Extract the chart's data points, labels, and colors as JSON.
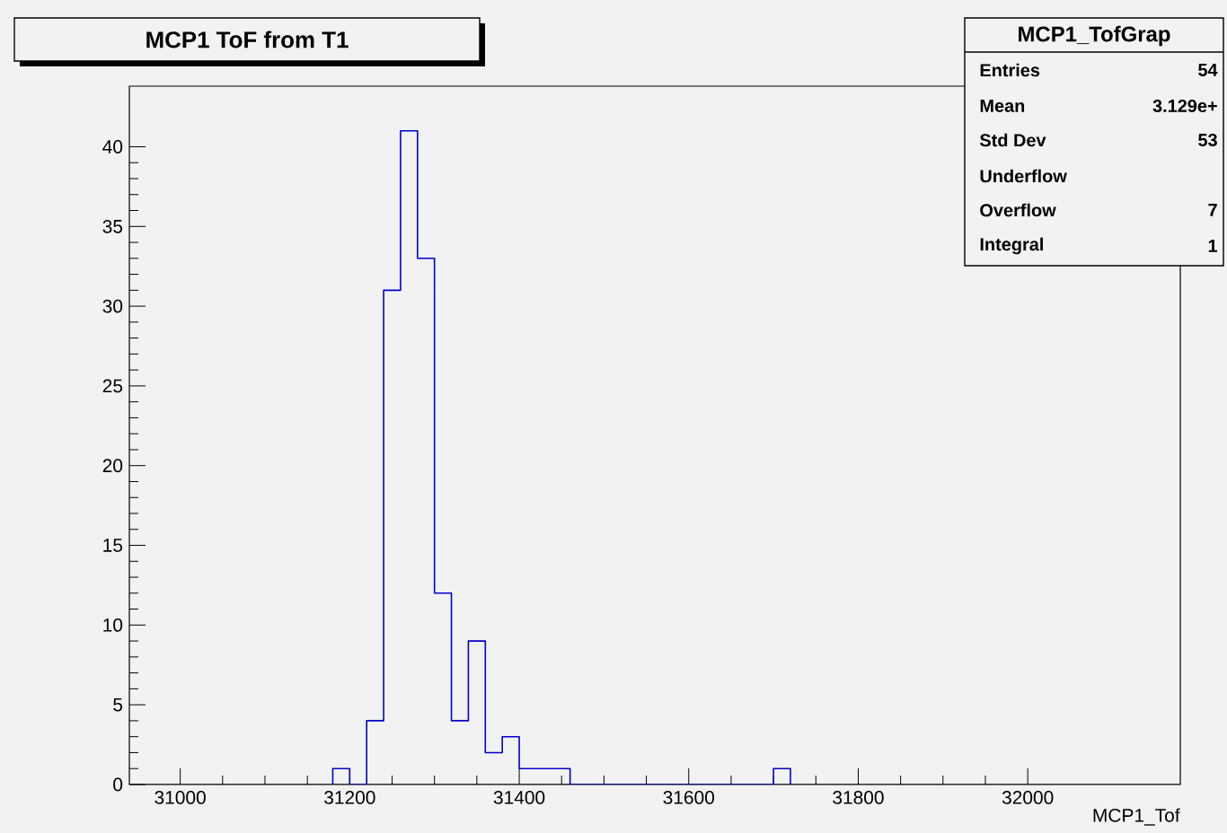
{
  "chart_data": {
    "type": "histogram",
    "title": "MCP1 ToF from T1",
    "xlabel": "MCP1_Tof",
    "color": "#0000cc",
    "bins": [
      31180,
      31200,
      31220,
      31240,
      31260,
      31280,
      31300,
      31320,
      31340,
      31360,
      31380,
      31400,
      31420,
      31440,
      31460,
      31480,
      31500,
      31520,
      31540,
      31560,
      31580,
      31600,
      31620,
      31640,
      31660,
      31680,
      31700,
      31720
    ],
    "values": [
      1,
      0,
      4,
      31,
      41,
      33,
      12,
      4,
      9,
      2,
      3,
      1,
      1,
      1,
      0,
      0,
      0,
      0,
      0,
      0,
      0,
      0,
      0,
      0,
      0,
      0,
      1
    ],
    "xlim": [
      30940,
      32180
    ],
    "xticks": [
      31000,
      31200,
      31400,
      31600,
      31800,
      32000
    ],
    "ylim": [
      0,
      43.8
    ],
    "yticks": [
      0,
      5,
      10,
      15,
      20,
      25,
      30,
      35,
      40
    ],
    "annotations": [
      "MCP1_TofGrap",
      "Entries",
      "54",
      "Mean",
      "3.129e+",
      "Std Dev",
      "53",
      "Underflow",
      "Overflow",
      "7",
      "Integral",
      "1"
    ]
  }
}
